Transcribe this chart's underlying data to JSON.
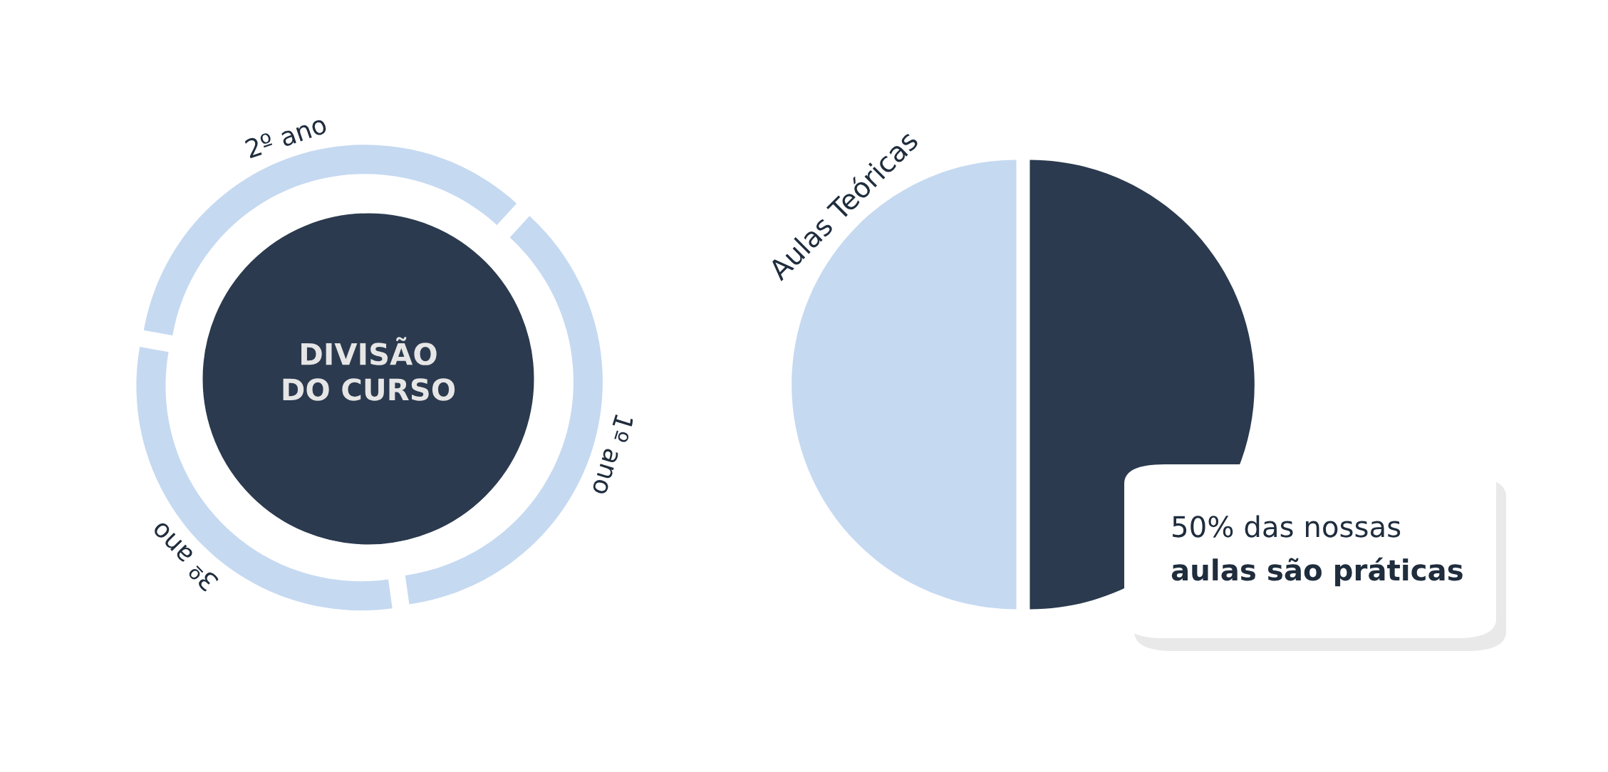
{
  "chart_data": [
    {
      "type": "donut",
      "title": "DIVISÃO\nDO CURSO",
      "categories": [
        "1º ano",
        "2º ano",
        "3º ano"
      ],
      "values": [
        36,
        34,
        30
      ],
      "colors": [
        "#c5d9f1",
        "#c5d9f1",
        "#c5d9f1"
      ]
    },
    {
      "type": "pie",
      "categories": [
        "Aulas Teóricas",
        null
      ],
      "values": [
        50,
        50
      ],
      "colors": [
        "#c5d9f1",
        "#2b3a4e"
      ],
      "annotations": [
        "50% das nossas",
        "aulas são práticas"
      ]
    }
  ]
}
